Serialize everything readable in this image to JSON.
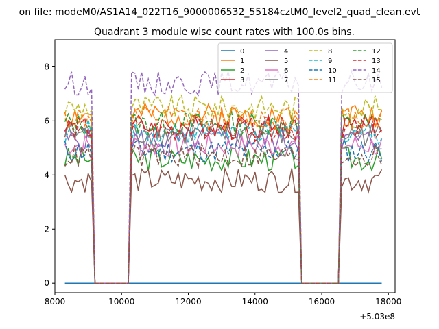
{
  "figure": {
    "suptitle": "on file: modeM0/AS1A14_022T16_9000006532_55184cztM0_level2_quad_clean.evt"
  },
  "chart_data": {
    "type": "line",
    "title": "Quadrant 3 module wise count rates with 100.0s bins.",
    "xlabel": "",
    "ylabel": "",
    "x_offset_label": "+5.03e8",
    "xlim": [
      8000,
      18200
    ],
    "ylim": [
      -0.35,
      9.0
    ],
    "xticks": [
      8000,
      10000,
      12000,
      14000,
      16000,
      18000
    ],
    "xtick_labels": [
      "8000",
      "10000",
      "12000",
      "14000",
      "16000",
      "18000"
    ],
    "yticks": [
      0,
      2,
      4,
      6,
      8
    ],
    "ytick_labels": [
      "0",
      "2",
      "4",
      "6",
      "8"
    ],
    "grid": false,
    "legend": {
      "placement": "top-right",
      "columns": 4
    },
    "x": [
      8300,
      9100,
      9200,
      10200,
      10300,
      15300,
      15400,
      16500,
      16600,
      17800
    ],
    "series": [
      {
        "name": "0",
        "color": "#1f77b4",
        "style": "solid",
        "level": 0.0
      },
      {
        "name": "1",
        "color": "#ff7f0e",
        "style": "solid",
        "level": 6.2
      },
      {
        "name": "2",
        "color": "#2ca02c",
        "style": "solid",
        "level": 4.6
      },
      {
        "name": "3",
        "color": "#d62728",
        "style": "solid",
        "level": 5.8
      },
      {
        "name": "4",
        "color": "#9467bd",
        "style": "solid",
        "level": 5.3
      },
      {
        "name": "5",
        "color": "#8c564b",
        "style": "solid",
        "level": 3.8
      },
      {
        "name": "6",
        "color": "#e377c2",
        "style": "solid",
        "level": 5.1
      },
      {
        "name": "7",
        "color": "#7f7f7f",
        "style": "solid",
        "level": 5.5
      },
      {
        "name": "8",
        "color": "#bcbd22",
        "style": "dashed",
        "level": 6.5
      },
      {
        "name": "9",
        "color": "#17becf",
        "style": "dashed",
        "level": 5.6
      },
      {
        "name": "10",
        "color": "#1f77b4",
        "style": "dashed",
        "level": 4.9
      },
      {
        "name": "11",
        "color": "#ff7f0e",
        "style": "dashed",
        "level": 6.1
      },
      {
        "name": "12",
        "color": "#2ca02c",
        "style": "dashed",
        "level": 5.9
      },
      {
        "name": "13",
        "color": "#d62728",
        "style": "dashed",
        "level": 5.7
      },
      {
        "name": "14",
        "color": "#9467bd",
        "style": "dashed",
        "level": 7.4
      },
      {
        "name": "15",
        "color": "#8c564b",
        "style": "dashed",
        "level": 4.7
      }
    ]
  }
}
